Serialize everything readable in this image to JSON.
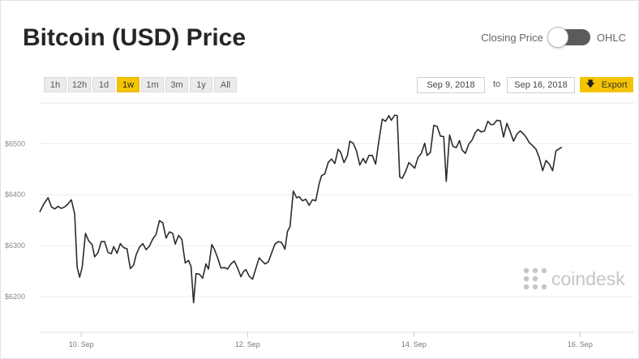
{
  "header": {
    "title": "Bitcoin (USD) Price",
    "toggle_left_label": "Closing Price",
    "toggle_right_label": "OHLC"
  },
  "ranges": [
    "1h",
    "12h",
    "1d",
    "1w",
    "1m",
    "3m",
    "1y",
    "All"
  ],
  "active_range": "1w",
  "date_range": {
    "from": "Sep 9, 2018",
    "to_label": "to",
    "to": "Sep 16, 2018"
  },
  "export_label": "Export",
  "watermark": "coindesk",
  "colors": {
    "accent": "#f5c400",
    "line": "#2b2b2b"
  },
  "chart_data": {
    "type": "line",
    "title": "Bitcoin (USD) Price",
    "y_ticks": [
      6200,
      6300,
      6400,
      6500
    ],
    "y_tick_labels": [
      "$6200",
      "$6300",
      "$6400",
      "$6500"
    ],
    "x_ticks": [
      1.0,
      3.0,
      5.0,
      7.0
    ],
    "x_tick_labels": [
      "10. Sep",
      "12. Sep",
      "14. Sep",
      "16. Sep"
    ],
    "xlim": [
      0.5,
      7.65
    ],
    "ylim": [
      6130,
      6580
    ],
    "grid": true,
    "series": [
      {
        "values": [
          [
            0.5,
            6366
          ],
          [
            0.55,
            6382
          ],
          [
            0.6,
            6394
          ],
          [
            0.64,
            6376
          ],
          [
            0.68,
            6372
          ],
          [
            0.72,
            6377
          ],
          [
            0.76,
            6373
          ],
          [
            0.8,
            6376
          ],
          [
            0.84,
            6382
          ],
          [
            0.88,
            6390
          ],
          [
            0.92,
            6362
          ],
          [
            0.95,
            6258
          ],
          [
            0.98,
            6238
          ],
          [
            1.01,
            6257
          ],
          [
            1.05,
            6324
          ],
          [
            1.09,
            6309
          ],
          [
            1.13,
            6302
          ],
          [
            1.16,
            6278
          ],
          [
            1.2,
            6286
          ],
          [
            1.24,
            6308
          ],
          [
            1.28,
            6308
          ],
          [
            1.32,
            6287
          ],
          [
            1.36,
            6284
          ],
          [
            1.39,
            6298
          ],
          [
            1.43,
            6285
          ],
          [
            1.47,
            6304
          ],
          [
            1.51,
            6296
          ],
          [
            1.55,
            6294
          ],
          [
            1.59,
            6255
          ],
          [
            1.63,
            6262
          ],
          [
            1.66,
            6282
          ],
          [
            1.7,
            6297
          ],
          [
            1.74,
            6304
          ],
          [
            1.78,
            6292
          ],
          [
            1.82,
            6299
          ],
          [
            1.86,
            6313
          ],
          [
            1.9,
            6322
          ],
          [
            1.94,
            6349
          ],
          [
            1.98,
            6345
          ],
          [
            2.02,
            6315
          ],
          [
            2.06,
            6327
          ],
          [
            2.1,
            6324
          ],
          [
            2.13,
            6303
          ],
          [
            2.17,
            6320
          ],
          [
            2.21,
            6312
          ],
          [
            2.25,
            6266
          ],
          [
            2.29,
            6271
          ],
          [
            2.32,
            6259
          ],
          [
            2.35,
            6188
          ],
          [
            2.38,
            6245
          ],
          [
            2.42,
            6244
          ],
          [
            2.46,
            6236
          ],
          [
            2.5,
            6264
          ],
          [
            2.53,
            6254
          ],
          [
            2.57,
            6302
          ],
          [
            2.6,
            6293
          ],
          [
            2.64,
            6276
          ],
          [
            2.68,
            6256
          ],
          [
            2.72,
            6257
          ],
          [
            2.76,
            6254
          ],
          [
            2.8,
            6264
          ],
          [
            2.84,
            6270
          ],
          [
            2.88,
            6256
          ],
          [
            2.92,
            6239
          ],
          [
            2.95,
            6249
          ],
          [
            2.98,
            6253
          ],
          [
            3.02,
            6240
          ],
          [
            3.06,
            6234
          ],
          [
            3.1,
            6255
          ],
          [
            3.14,
            6276
          ],
          [
            3.18,
            6269
          ],
          [
            3.21,
            6264
          ],
          [
            3.25,
            6268
          ],
          [
            3.29,
            6286
          ],
          [
            3.33,
            6303
          ],
          [
            3.37,
            6308
          ],
          [
            3.41,
            6306
          ],
          [
            3.45,
            6293
          ],
          [
            3.48,
            6328
          ],
          [
            3.51,
            6337
          ],
          [
            3.55,
            6407
          ],
          [
            3.59,
            6394
          ],
          [
            3.62,
            6396
          ],
          [
            3.66,
            6388
          ],
          [
            3.7,
            6391
          ],
          [
            3.74,
            6379
          ],
          [
            3.78,
            6390
          ],
          [
            3.82,
            6388
          ],
          [
            3.86,
            6421
          ],
          [
            3.89,
            6437
          ],
          [
            3.93,
            6441
          ],
          [
            3.97,
            6463
          ],
          [
            4.01,
            6470
          ],
          [
            4.05,
            6461
          ],
          [
            4.09,
            6489
          ],
          [
            4.12,
            6483
          ],
          [
            4.16,
            6463
          ],
          [
            4.2,
            6476
          ],
          [
            4.23,
            6505
          ],
          [
            4.27,
            6501
          ],
          [
            4.31,
            6486
          ],
          [
            4.35,
            6458
          ],
          [
            4.39,
            6471
          ],
          [
            4.42,
            6462
          ],
          [
            4.46,
            6477
          ],
          [
            4.5,
            6477
          ],
          [
            4.54,
            6460
          ],
          [
            4.58,
            6506
          ],
          [
            4.62,
            6548
          ],
          [
            4.66,
            6544
          ],
          [
            4.7,
            6555
          ],
          [
            4.73,
            6546
          ],
          [
            4.77,
            6556
          ],
          [
            4.8,
            6555
          ],
          [
            4.83,
            6435
          ],
          [
            4.86,
            6432
          ],
          [
            4.9,
            6445
          ],
          [
            4.94,
            6463
          ],
          [
            4.98,
            6457
          ],
          [
            5.01,
            6452
          ],
          [
            5.05,
            6473
          ],
          [
            5.09,
            6481
          ],
          [
            5.13,
            6501
          ],
          [
            5.16,
            6477
          ],
          [
            5.2,
            6483
          ],
          [
            5.24,
            6536
          ],
          [
            5.28,
            6534
          ],
          [
            5.32,
            6515
          ],
          [
            5.36,
            6514
          ],
          [
            5.39,
            6426
          ],
          [
            5.43,
            6517
          ],
          [
            5.47,
            6495
          ],
          [
            5.51,
            6492
          ],
          [
            5.55,
            6506
          ],
          [
            5.58,
            6488
          ],
          [
            5.62,
            6481
          ],
          [
            5.66,
            6499
          ],
          [
            5.7,
            6507
          ],
          [
            5.74,
            6522
          ],
          [
            5.77,
            6528
          ],
          [
            5.81,
            6523
          ],
          [
            5.85,
            6525
          ],
          [
            5.89,
            6544
          ],
          [
            5.93,
            6537
          ],
          [
            5.96,
            6538
          ],
          [
            6.0,
            6546
          ],
          [
            6.04,
            6545
          ],
          [
            6.08,
            6513
          ],
          [
            6.12,
            6540
          ],
          [
            6.16,
            6523
          ],
          [
            6.2,
            6505
          ],
          [
            6.24,
            6519
          ],
          [
            6.28,
            6525
          ],
          [
            6.32,
            6519
          ],
          [
            6.35,
            6513
          ],
          [
            6.39,
            6502
          ],
          [
            6.43,
            6496
          ],
          [
            6.47,
            6489
          ],
          [
            6.51,
            6472
          ],
          [
            6.55,
            6447
          ],
          [
            6.59,
            6467
          ],
          [
            6.63,
            6460
          ],
          [
            6.67,
            6447
          ],
          [
            6.71,
            6486
          ],
          [
            6.75,
            6490
          ],
          [
            6.78,
            6493
          ]
        ]
      }
    ]
  }
}
